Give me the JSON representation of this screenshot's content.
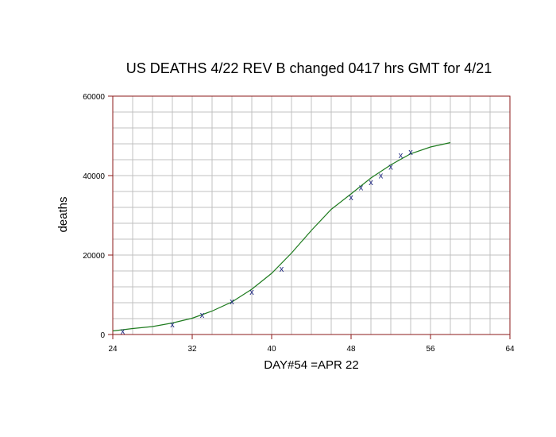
{
  "chart_data": {
    "type": "scatter",
    "title": "US DEATHS 4/22 REV B changed 0417 hrs GMT for 4/21",
    "xlabel": "DAY#54 =APR 22",
    "ylabel": "deaths",
    "xlim": [
      24,
      64
    ],
    "ylim": [
      0,
      60000
    ],
    "x_ticks": [
      24,
      32,
      40,
      48,
      56,
      64
    ],
    "x_tick_labels": [
      "24",
      "32",
      "40",
      "48",
      "56",
      "64"
    ],
    "y_ticks": [
      0,
      20000,
      40000,
      60000
    ],
    "y_tick_labels": [
      "0",
      "20000",
      "40000",
      "60000"
    ],
    "grid": true,
    "series": [
      {
        "type": "scatter",
        "marker_glyph": "x",
        "color": "#1a237e",
        "x": [
          25,
          30,
          33,
          36,
          38,
          41,
          48,
          49,
          50,
          51,
          52,
          53,
          54
        ],
        "y": [
          900,
          2600,
          5000,
          8400,
          10800,
          16600,
          34600,
          37100,
          38400,
          40100,
          42300,
          45200,
          46000
        ]
      },
      {
        "type": "line",
        "color": "#1e7b1e",
        "x": [
          24,
          26,
          28,
          30,
          32,
          34,
          36,
          38,
          40,
          42,
          44,
          46,
          48,
          50,
          52,
          54,
          56,
          58
        ],
        "y": [
          900,
          1500,
          2000,
          2900,
          4100,
          5900,
          8200,
          11400,
          15400,
          20500,
          26200,
          31500,
          35400,
          39400,
          42700,
          45500,
          47200,
          48300
        ]
      }
    ],
    "colors": {
      "plot_border": "#8b1a1a",
      "grid": "#c0c0c0"
    }
  }
}
